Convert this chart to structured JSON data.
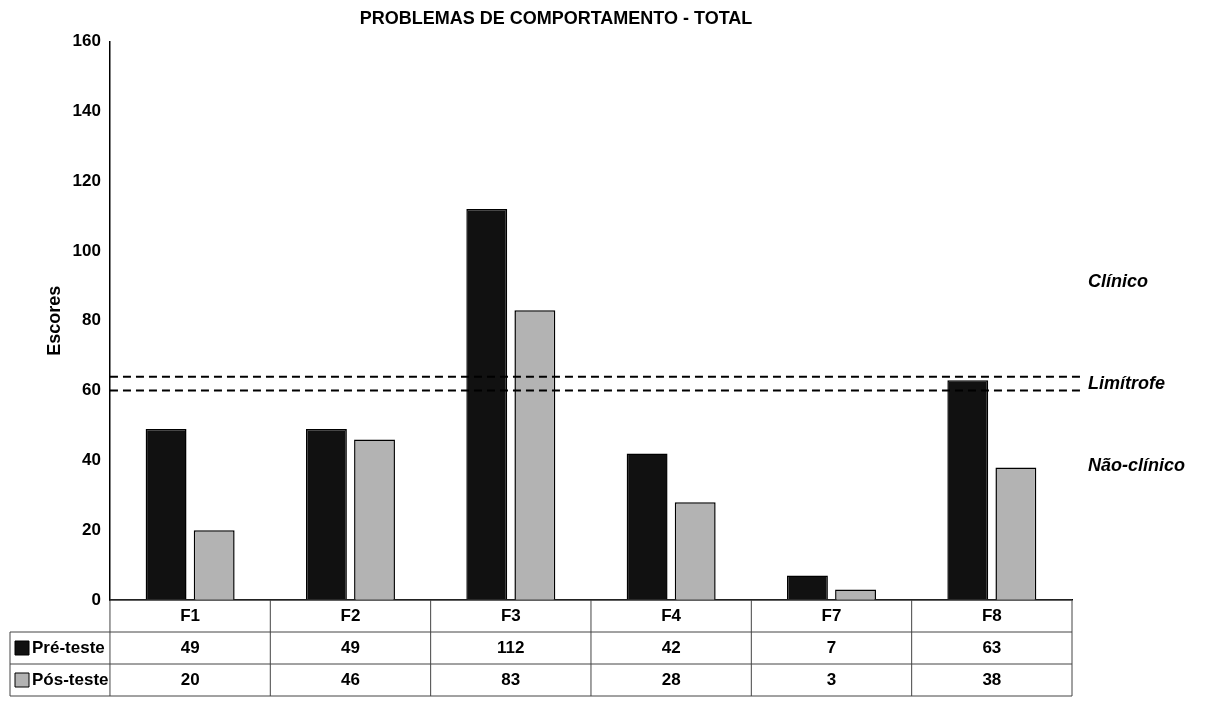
{
  "chart_data": {
    "type": "bar",
    "title": "PROBLEMAS DE COMPORTAMENTO - TOTAL",
    "ylabel": "Escores",
    "categories": [
      "F1",
      "F2",
      "F3",
      "F4",
      "F7",
      "F8"
    ],
    "series": [
      {
        "name": "Pré-teste",
        "color": "#111111",
        "values": [
          49,
          49,
          112,
          42,
          7,
          63
        ]
      },
      {
        "name": "Pós-teste",
        "color": "#b3b3b3",
        "values": [
          20,
          46,
          83,
          28,
          3,
          38
        ]
      }
    ],
    "ylim": [
      0,
      160
    ],
    "yticks": [
      0,
      20,
      40,
      60,
      80,
      100,
      120,
      140,
      160
    ],
    "grid": false,
    "data_labels": true,
    "legend": "bottom left",
    "ref_lines": [
      {
        "axis": "y",
        "value": 64,
        "line_style": "dashed",
        "color": "#000000"
      },
      {
        "axis": "y",
        "value": 60,
        "line_style": "dashed",
        "color": "#000000"
      }
    ],
    "annotations": [
      "Clínico",
      "Limítrofe",
      "Não-clínico"
    ]
  }
}
